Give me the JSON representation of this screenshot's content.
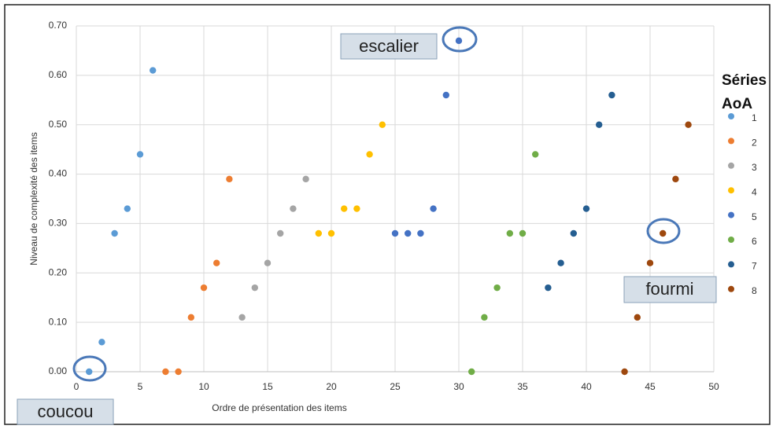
{
  "chart_data": {
    "type": "scatter",
    "x_label": "Ordre de présentation des items",
    "y_label": "Niveau de complexité des items",
    "legend_title": "Séries AoA",
    "legend_position": "right",
    "grid": true,
    "xlim": [
      0,
      50
    ],
    "xticks": [
      0,
      5,
      10,
      15,
      20,
      25,
      30,
      35,
      40,
      45,
      50
    ],
    "ylim": [
      0,
      0.7
    ],
    "yticks": [
      {
        "value": 0,
        "label": "0.00"
      },
      {
        "value": 0.1,
        "label": "0.10"
      },
      {
        "value": 0.2,
        "label": "0.20"
      },
      {
        "value": 0.3,
        "label": "0.30"
      },
      {
        "value": 0.4,
        "label": "0.40"
      },
      {
        "value": 0.5,
        "label": "0.50"
      },
      {
        "value": 0.6,
        "label": "0.60"
      },
      {
        "value": 0.7,
        "label": "0.70"
      }
    ],
    "series": [
      {
        "name": "1",
        "color": "#5b9bd5",
        "x": [
          1,
          2,
          3,
          4,
          5,
          6
        ],
        "values": [
          0,
          0.06,
          0.28,
          0.33,
          0.44,
          0.61
        ]
      },
      {
        "name": "2",
        "color": "#ed7d31",
        "x": [
          7,
          8,
          9,
          10,
          11,
          12
        ],
        "values": [
          0,
          0,
          0.11,
          0.17,
          0.22,
          0.39
        ]
      },
      {
        "name": "3",
        "color": "#a5a5a5",
        "x": [
          13,
          14,
          15,
          16,
          17,
          18
        ],
        "values": [
          0.11,
          0.17,
          0.22,
          0.28,
          0.33,
          0.39
        ]
      },
      {
        "name": "4",
        "color": "#ffc000",
        "x": [
          19,
          20,
          21,
          22,
          23,
          24
        ],
        "values": [
          0.28,
          0.28,
          0.33,
          0.33,
          0.44,
          0.5
        ]
      },
      {
        "name": "5",
        "color": "#4472c4",
        "x": [
          25,
          26,
          27,
          28,
          29,
          30
        ],
        "values": [
          0.28,
          0.28,
          0.28,
          0.33,
          0.56,
          0.67
        ]
      },
      {
        "name": "6",
        "color": "#70ad47",
        "x": [
          31,
          32,
          33,
          34,
          35,
          36
        ],
        "values": [
          0,
          0.11,
          0.17,
          0.28,
          0.28,
          0.44
        ]
      },
      {
        "name": "7",
        "color": "#255e91",
        "x": [
          37,
          38,
          39,
          40,
          41,
          42
        ],
        "values": [
          0.17,
          0.22,
          0.28,
          0.33,
          0.5,
          0.56
        ]
      },
      {
        "name": "8",
        "color": "#9e480e",
        "x": [
          43,
          44,
          45,
          46,
          47,
          48
        ],
        "values": [
          0,
          0.11,
          0.22,
          0.28,
          0.39,
          0.5
        ]
      }
    ],
    "annotations": [
      "escalier",
      "coucou",
      "fourmi"
    ]
  }
}
